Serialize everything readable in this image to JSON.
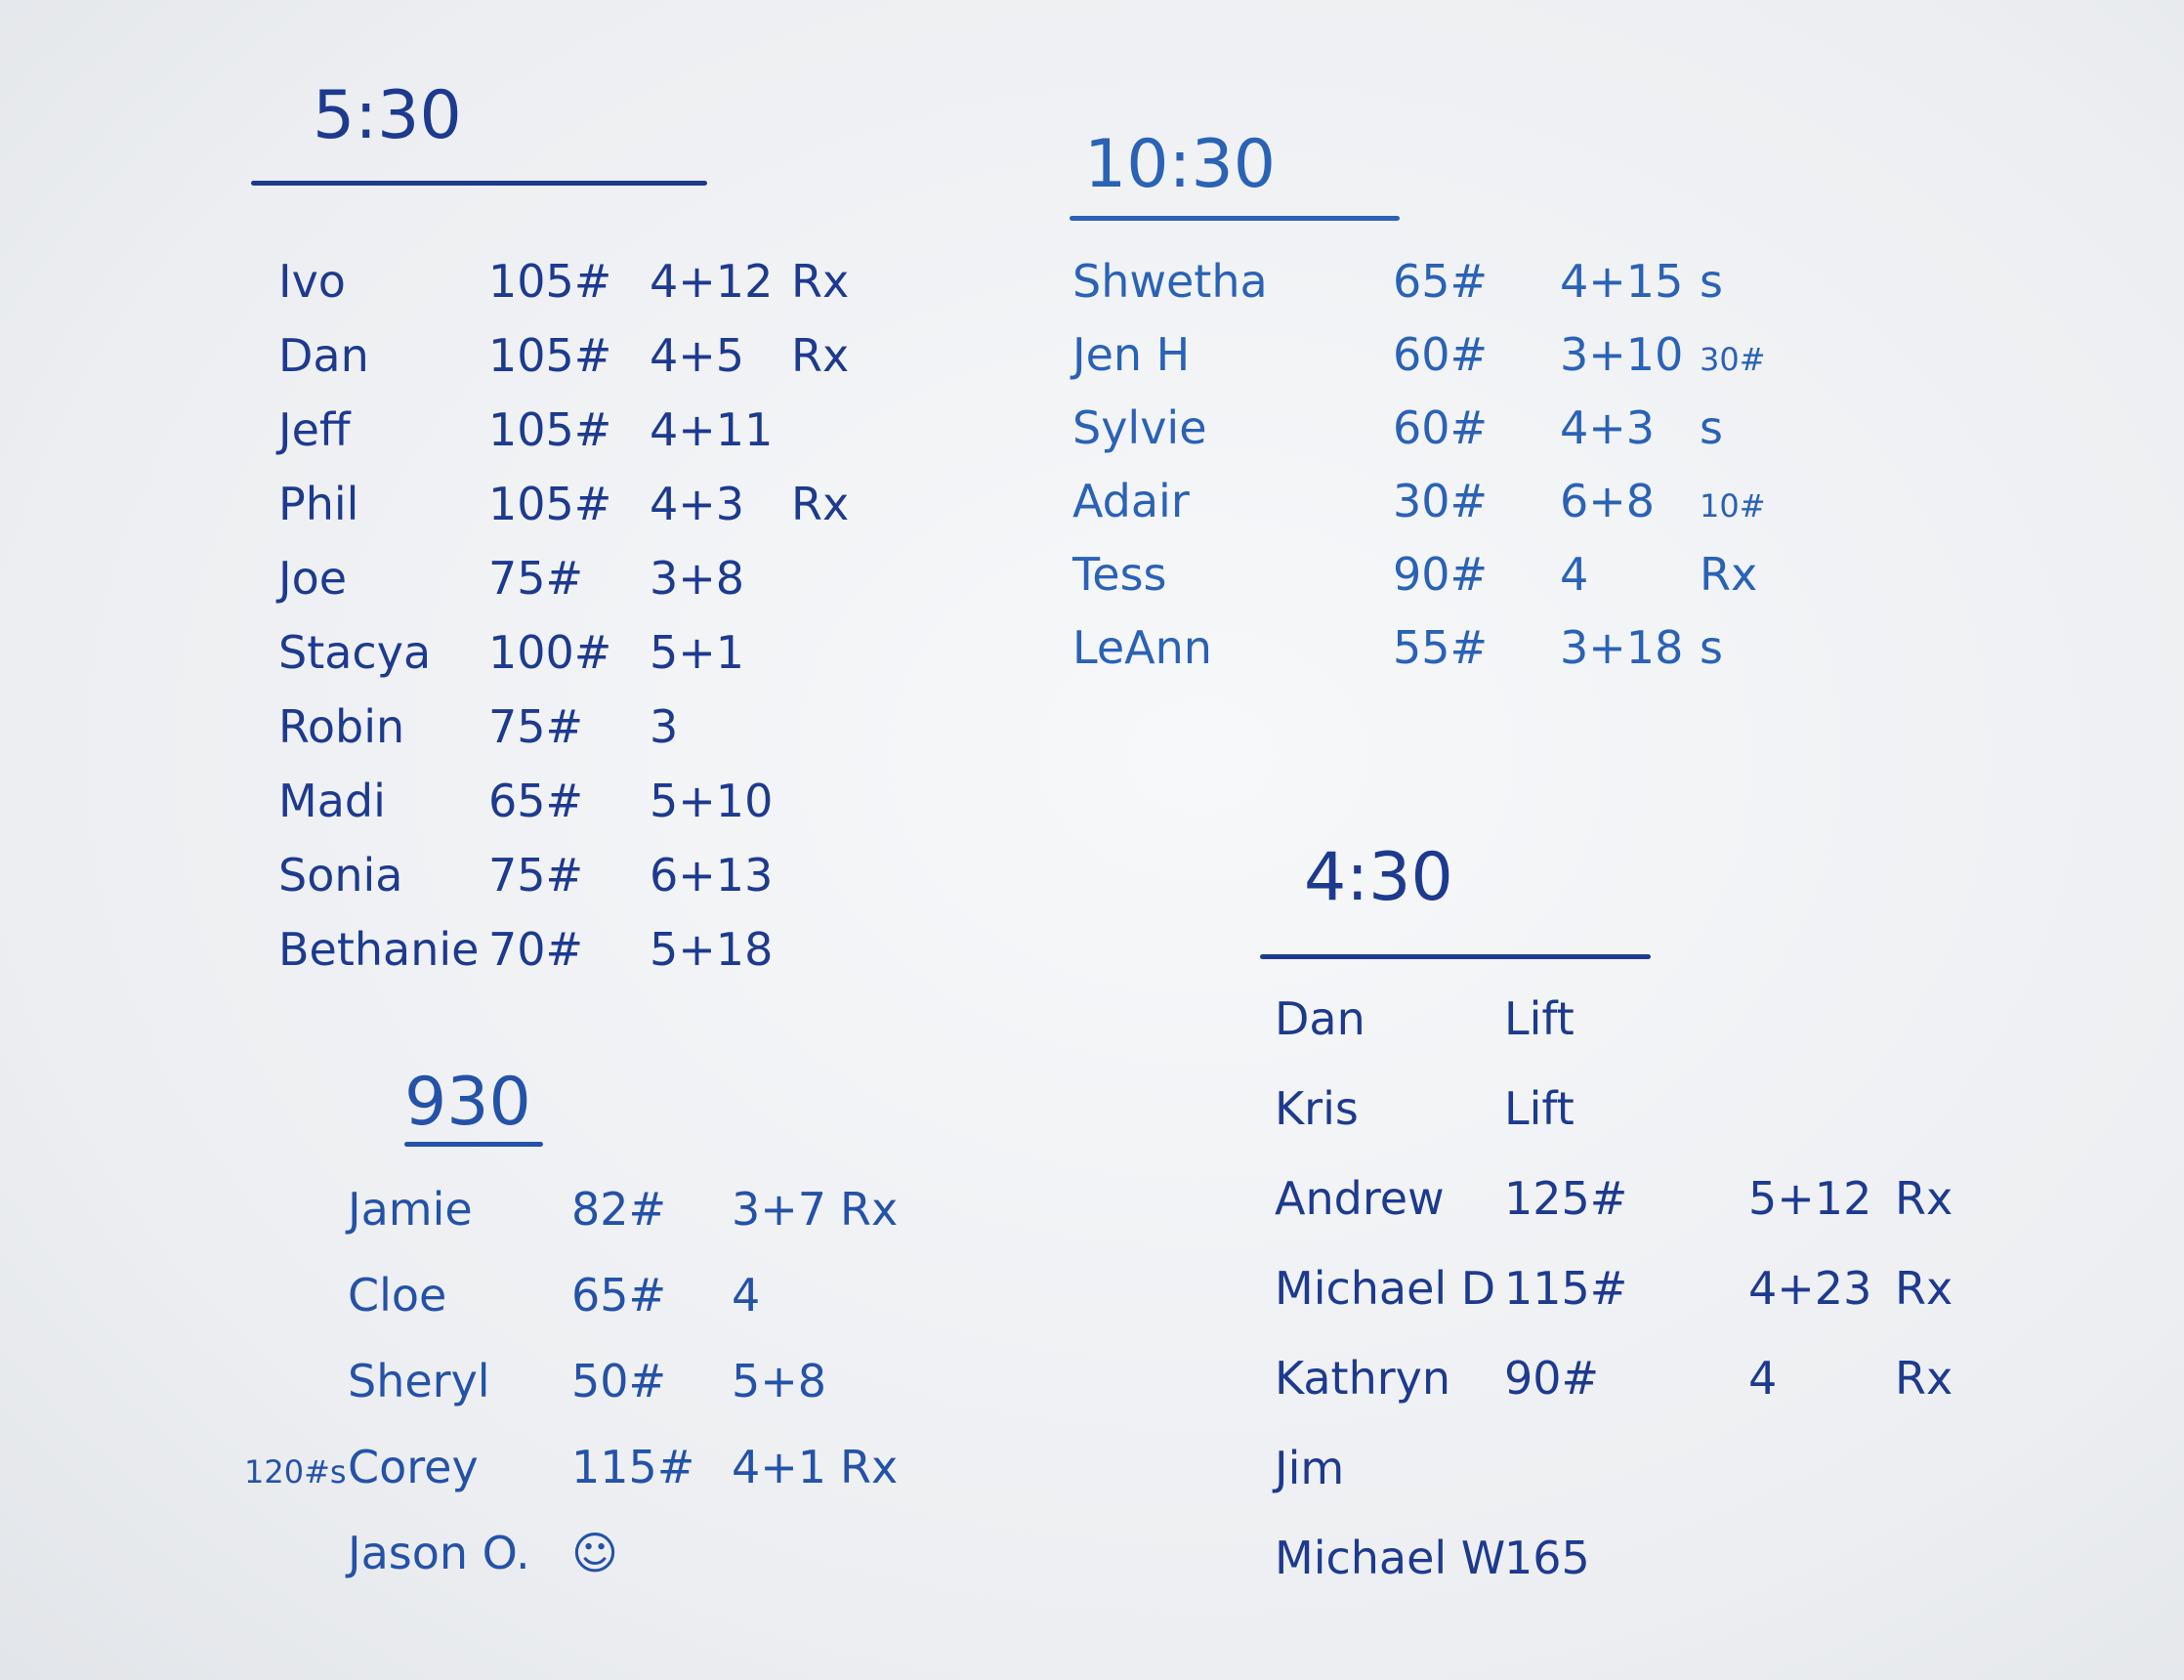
{
  "sections": [
    {
      "title": "5:30",
      "rows": [
        {
          "cells": [
            "Ivo",
            "105#",
            "4+12",
            "Rx"
          ]
        },
        {
          "cells": [
            "Dan",
            "105#",
            "4+5",
            "Rx"
          ]
        },
        {
          "cells": [
            "Jeff",
            "105#",
            "4+11"
          ]
        },
        {
          "cells": [
            "Phil",
            "105#",
            "4+3",
            "Rx"
          ]
        },
        {
          "cells": [
            "Joe",
            "75#",
            "3+8"
          ]
        },
        {
          "cells": [
            "Stacya",
            "100#",
            "5+1"
          ]
        },
        {
          "cells": [
            "Robin",
            "75#",
            "3"
          ]
        },
        {
          "cells": [
            "Madi",
            "65#",
            "5+10"
          ]
        },
        {
          "cells": [
            "Sonia",
            "75#",
            "6+13"
          ]
        },
        {
          "cells": [
            "Bethanie",
            "70#",
            "5+18"
          ]
        }
      ]
    },
    {
      "title": "10:30",
      "rows": [
        {
          "cells": [
            "Shwetha",
            "65#",
            "4+15",
            "s"
          ]
        },
        {
          "cells": [
            "Jen H",
            "60#",
            "3+10",
            "30#"
          ]
        },
        {
          "cells": [
            "Sylvie",
            "60#",
            "4+3",
            "s"
          ]
        },
        {
          "cells": [
            "Adair",
            "30#",
            "6+8",
            "10#"
          ]
        },
        {
          "cells": [
            "Tess",
            "90#",
            "4",
            "Rx"
          ]
        },
        {
          "cells": [
            "LeAnn",
            "55#",
            "3+18",
            "s"
          ]
        }
      ]
    },
    {
      "title": "930",
      "rows": [
        {
          "cells": [
            "Jamie",
            "82#",
            "3+7",
            "Rx"
          ]
        },
        {
          "cells": [
            "Cloe",
            "65#",
            "4"
          ]
        },
        {
          "cells": [
            "Sheryl",
            "50#",
            "5+8"
          ]
        },
        {
          "cells": [
            "Corey",
            "115#",
            "4+1",
            "Rx"
          ],
          "prefix": "120#s"
        },
        {
          "cells": [
            "Jason O.",
            "☺"
          ]
        }
      ]
    },
    {
      "title": "4:30",
      "rows": [
        {
          "cells": [
            "Dan",
            "Lift"
          ]
        },
        {
          "cells": [
            "Kris",
            "Lift"
          ]
        },
        {
          "cells": [
            "Andrew",
            "125#",
            "5+12",
            "Rx"
          ]
        },
        {
          "cells": [
            "Michael D",
            "115#",
            "4+23",
            "Rx"
          ]
        },
        {
          "cells": [
            "Kathryn",
            "90#",
            "4",
            "Rx"
          ]
        },
        {
          "cells": [
            "Jim"
          ]
        },
        {
          "cells": [
            "Michael W",
            "165"
          ]
        }
      ]
    }
  ]
}
